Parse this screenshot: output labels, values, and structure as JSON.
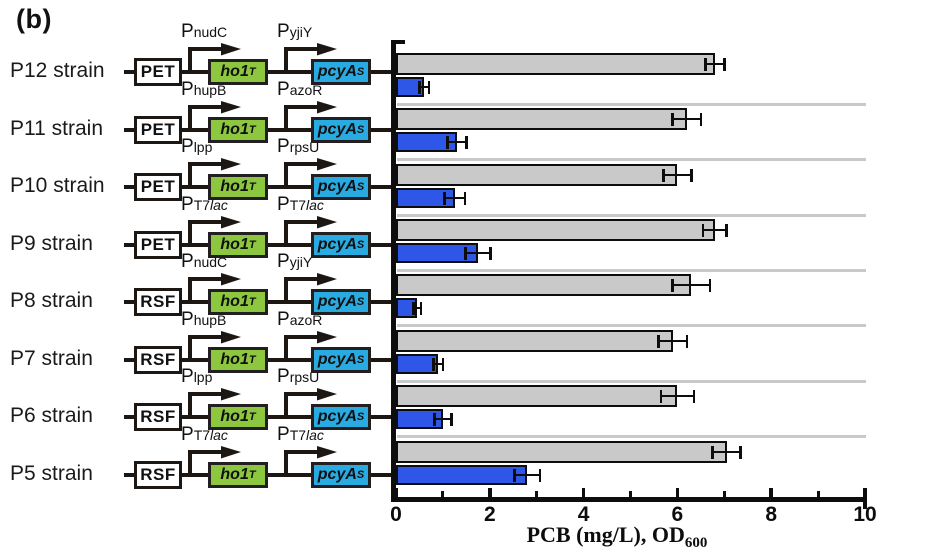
{
  "figure_label": "(b)",
  "colors": {
    "od_bar": "#c9c9c9",
    "pcb_bar": "#2e57e8",
    "gene1_box": "#8dc63f",
    "gene2_box": "#29abe2",
    "outline": "#0d0d0d",
    "separator": "#c9c9c9"
  },
  "promoter_prefix": "P",
  "genes": {
    "gene1_name": "ho1",
    "gene1_sup": "T",
    "gene2_name": "pcyA",
    "gene2_sup": "S"
  },
  "strains": [
    {
      "name": "P12 strain",
      "backbone": "PET",
      "prom1_plain": "nudC",
      "prom1_italic": "",
      "prom2_plain": "yjiY",
      "prom2_italic": ""
    },
    {
      "name": "P11 strain",
      "backbone": "PET",
      "prom1_plain": "hupB",
      "prom1_italic": "",
      "prom2_plain": "azoR",
      "prom2_italic": ""
    },
    {
      "name": "P10 strain",
      "backbone": "PET",
      "prom1_plain": "lpp",
      "prom1_italic": "",
      "prom2_plain": "rpsU",
      "prom2_italic": ""
    },
    {
      "name": "P9 strain",
      "backbone": "PET",
      "prom1_plain": "T7",
      "prom1_italic": "lac",
      "prom2_plain": "T7",
      "prom2_italic": "lac"
    },
    {
      "name": "P8 strain",
      "backbone": "RSF",
      "prom1_plain": "nudC",
      "prom1_italic": "",
      "prom2_plain": "yjiY",
      "prom2_italic": ""
    },
    {
      "name": "P7 strain",
      "backbone": "RSF",
      "prom1_plain": "hupB",
      "prom1_italic": "",
      "prom2_plain": "azoR",
      "prom2_italic": ""
    },
    {
      "name": "P6 strain",
      "backbone": "RSF",
      "prom1_plain": "lpp",
      "prom1_italic": "",
      "prom2_plain": "rpsU",
      "prom2_italic": ""
    },
    {
      "name": "P5 strain",
      "backbone": "RSF",
      "prom1_plain": "T7",
      "prom1_italic": "lac",
      "prom2_plain": "T7",
      "prom2_italic": "lac"
    }
  ],
  "chart_data": {
    "type": "bar",
    "orientation": "horizontal",
    "title": "",
    "xlabel_main": "PCB (mg/L), OD",
    "xlabel_sub": "600",
    "xlim": [
      0,
      10
    ],
    "major_ticks": [
      0,
      2,
      4,
      6,
      8,
      10
    ],
    "minor_ticks": [
      1,
      3,
      5,
      7,
      9
    ],
    "grid": "group-separators",
    "legend": "none",
    "categories": [
      "P12",
      "P11",
      "P10",
      "P9",
      "P8",
      "P7",
      "P6",
      "P5"
    ],
    "series": [
      {
        "name": "OD600",
        "color": "#c9c9c9",
        "values": [
          6.8,
          6.2,
          6.0,
          6.8,
          6.3,
          5.9,
          6.0,
          7.05
        ],
        "errors": [
          0.2,
          0.3,
          0.3,
          0.25,
          0.4,
          0.3,
          0.35,
          0.3
        ]
      },
      {
        "name": "PCB (mg/L)",
        "color": "#2e57e8",
        "values": [
          0.6,
          1.3,
          1.25,
          1.75,
          0.45,
          0.9,
          1.0,
          2.8
        ],
        "errors": [
          0.1,
          0.2,
          0.22,
          0.27,
          0.08,
          0.1,
          0.18,
          0.27
        ]
      }
    ]
  }
}
